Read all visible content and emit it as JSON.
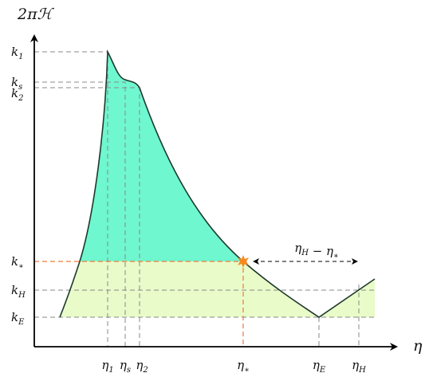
{
  "axes": {
    "y_label": "2πℋ",
    "x_label": "η"
  },
  "y_labels": [
    {
      "base": "k",
      "sub": "1"
    },
    {
      "base": "k",
      "sub": "s"
    },
    {
      "base": "k",
      "sub": "2"
    },
    {
      "base": "k",
      "sub": "∗"
    },
    {
      "base": "k",
      "sub": "H"
    },
    {
      "base": "k",
      "sub": "E"
    }
  ],
  "x_labels": [
    {
      "base": "η",
      "sub": "1"
    },
    {
      "base": "η",
      "sub": "s"
    },
    {
      "base": "η",
      "sub": "2"
    },
    {
      "base": "η",
      "sub": "∗"
    },
    {
      "base": "η",
      "sub": "E"
    },
    {
      "base": "η",
      "sub": "H"
    }
  ],
  "annotation": [
    {
      "base": "η",
      "sub": "H"
    },
    {
      "base": " − η",
      "sub": "∗"
    }
  ]
}
